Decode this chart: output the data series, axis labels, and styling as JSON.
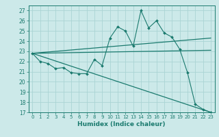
{
  "title": "",
  "xlabel": "Humidex (Indice chaleur)",
  "bg_color": "#cce9e9",
  "grid_color": "#aad4d4",
  "line_color": "#1a7a6e",
  "xlim": [
    -0.5,
    23.5
  ],
  "ylim": [
    17,
    27.5
  ],
  "yticks": [
    17,
    18,
    19,
    20,
    21,
    22,
    23,
    24,
    25,
    26,
    27
  ],
  "xticks": [
    0,
    1,
    2,
    3,
    4,
    5,
    6,
    7,
    8,
    9,
    10,
    11,
    12,
    13,
    14,
    15,
    16,
    17,
    18,
    19,
    20,
    21,
    22,
    23
  ],
  "series1_x": [
    0,
    1,
    2,
    3,
    4,
    5,
    6,
    7,
    8,
    9,
    10,
    11,
    12,
    13,
    14,
    15,
    16,
    17,
    18,
    19,
    20,
    21,
    22,
    23
  ],
  "series1_y": [
    22.8,
    22.0,
    21.8,
    21.3,
    21.4,
    20.9,
    20.8,
    20.8,
    22.2,
    21.6,
    24.3,
    25.4,
    25.0,
    23.5,
    27.0,
    25.3,
    26.0,
    24.8,
    24.4,
    23.2,
    20.9,
    17.8,
    17.3,
    17.0
  ],
  "series2_x": [
    0,
    23
  ],
  "series2_y": [
    22.8,
    24.3
  ],
  "series3_x": [
    0,
    23
  ],
  "series3_y": [
    22.8,
    23.1
  ],
  "series4_x": [
    0,
    23
  ],
  "series4_y": [
    22.8,
    17.0
  ]
}
